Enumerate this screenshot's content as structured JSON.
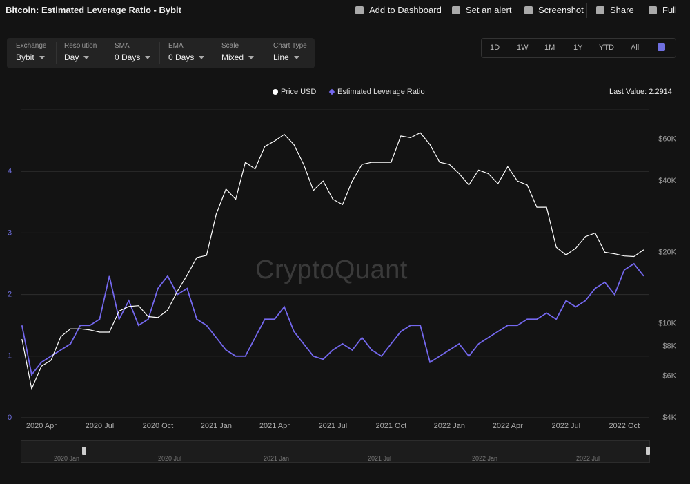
{
  "header": {
    "title": "Bitcoin: Estimated Leverage Ratio - Bybit",
    "actions": [
      "Add to Dashboard",
      "Set an alert",
      "Screenshot",
      "Share",
      "Full"
    ]
  },
  "filters": [
    {
      "label": "Exchange",
      "value": "Bybit"
    },
    {
      "label": "Resolution",
      "value": "Day"
    },
    {
      "label": "SMA",
      "value": "0 Days"
    },
    {
      "label": "EMA",
      "value": "0 Days"
    },
    {
      "label": "Scale",
      "value": "Mixed"
    },
    {
      "label": "Chart Type",
      "value": "Line"
    }
  ],
  "timeframes": [
    "1D",
    "1W",
    "1M",
    "1Y",
    "YTD",
    "All"
  ],
  "last_value": "Last Value: 2.2914",
  "watermark": "CryptoQuant",
  "navigator": {
    "labels": [
      "2020 Jan",
      "2020 Jul",
      "2021 Jan",
      "2021 Jul",
      "2022 Jan",
      "2022 Jul"
    ]
  },
  "chart_data": {
    "type": "line",
    "categories": [
      null,
      null,
      "2020 Apr",
      null,
      null,
      null,
      null,
      null,
      "2020 Jul",
      null,
      null,
      null,
      null,
      null,
      "2020 Oct",
      null,
      null,
      null,
      null,
      null,
      "2021 Jan",
      null,
      null,
      null,
      null,
      null,
      "2021 Apr",
      null,
      null,
      null,
      null,
      null,
      "2021 Jul",
      null,
      null,
      null,
      null,
      null,
      "2021 Oct",
      null,
      null,
      null,
      null,
      null,
      "2022 Jan",
      null,
      null,
      null,
      null,
      null,
      "2022 Apr",
      null,
      null,
      null,
      null,
      null,
      "2022 Jul",
      null,
      null,
      null,
      null,
      null,
      "2022 Oct",
      null,
      null
    ],
    "series": [
      {
        "name": "Price USD",
        "color": "#ffffff",
        "axis": "y2",
        "values": [
          8600,
          5300,
          6600,
          7000,
          8800,
          9500,
          9500,
          9400,
          9200,
          9200,
          11300,
          11800,
          11900,
          10700,
          10600,
          11400,
          13700,
          16000,
          19000,
          19400,
          29000,
          37000,
          33500,
          48000,
          45000,
          56000,
          59000,
          63000,
          57000,
          47000,
          36500,
          40000,
          33500,
          31800,
          40000,
          47000,
          48000,
          48000,
          48000,
          62000,
          61000,
          64000,
          57000,
          48000,
          47000,
          43000,
          38500,
          44500,
          43000,
          39000,
          46000,
          40000,
          38500,
          31000,
          31000,
          21000,
          19500,
          20800,
          23300,
          24100,
          20000,
          19700,
          19300,
          19200,
          20500
        ]
      },
      {
        "name": "Estimated Leverage Ratio",
        "color": "#7468ee",
        "values": [
          1.5,
          0.7,
          0.9,
          1.0,
          1.1,
          1.2,
          1.5,
          1.5,
          1.6,
          2.3,
          1.6,
          1.9,
          1.5,
          1.6,
          2.1,
          2.3,
          2.0,
          2.1,
          1.6,
          1.5,
          1.3,
          1.1,
          1.0,
          1.0,
          1.3,
          1.6,
          1.6,
          1.8,
          1.4,
          1.2,
          1.0,
          0.95,
          1.1,
          1.2,
          1.1,
          1.3,
          1.1,
          1.0,
          1.2,
          1.4,
          1.5,
          1.5,
          0.9,
          1.0,
          1.1,
          1.2,
          1.0,
          1.2,
          1.3,
          1.4,
          1.5,
          1.5,
          1.6,
          1.6,
          1.7,
          1.6,
          1.9,
          1.8,
          1.9,
          2.1,
          2.2,
          2.0,
          2.4,
          2.5,
          2.3
        ]
      }
    ],
    "ylim": [
      0,
      5
    ],
    "yticks": [
      0,
      1,
      2,
      3,
      4
    ],
    "y2lim": [
      4000,
      80000
    ],
    "y2scale": "log",
    "y2ticks": [
      {
        "value": 4000,
        "label": "$4K"
      },
      {
        "value": 6000,
        "label": "$6K"
      },
      {
        "value": 8000,
        "label": "$8K"
      },
      {
        "value": 10000,
        "label": "$10K"
      },
      {
        "value": 20000,
        "label": "$20K"
      },
      {
        "value": 40000,
        "label": "$40K"
      },
      {
        "value": 60000,
        "label": "$60K"
      }
    ],
    "grid": true
  }
}
